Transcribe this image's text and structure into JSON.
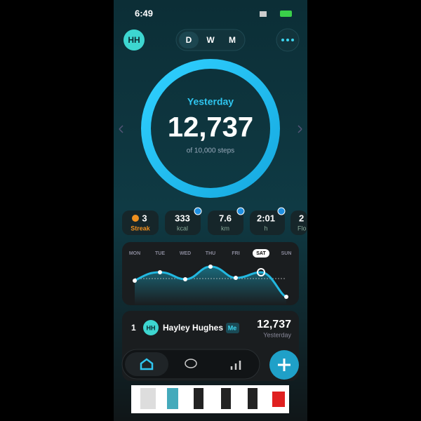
{
  "status_bar": {
    "time": "6:49"
  },
  "header": {
    "avatar": "HH",
    "tabs": [
      "D",
      "W",
      "M"
    ]
  },
  "ring": {
    "label": "Yesterday",
    "steps": "12,737",
    "goal": "of 10,000 steps"
  },
  "stats": [
    {
      "value": "3",
      "label": "Streak"
    },
    {
      "value": "333",
      "label": "kcal"
    },
    {
      "value": "7.6",
      "label": "km"
    },
    {
      "value": "2:01",
      "label": "h"
    },
    {
      "value": "2",
      "label": "Flo"
    }
  ],
  "week": {
    "days": [
      "MON",
      "TUE",
      "WED",
      "THU",
      "FRI",
      "SAT",
      "SUN"
    ]
  },
  "leaderboard": {
    "rank": "1",
    "avatar": "HH",
    "name": "Hayley Hughes",
    "badge": "Me",
    "steps": "12,737",
    "period": "Yesterday"
  }
}
